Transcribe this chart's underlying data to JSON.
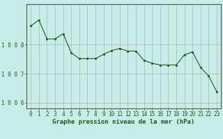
{
  "x": [
    0,
    1,
    2,
    3,
    4,
    5,
    6,
    7,
    8,
    9,
    10,
    11,
    12,
    13,
    14,
    15,
    16,
    17,
    18,
    19,
    20,
    21,
    22,
    23
  ],
  "y": [
    1008.65,
    1008.85,
    1008.2,
    1008.2,
    1008.38,
    1007.72,
    1007.52,
    1007.52,
    1007.52,
    1007.67,
    1007.8,
    1007.87,
    1007.78,
    1007.78,
    1007.46,
    1007.36,
    1007.3,
    1007.3,
    1007.3,
    1007.65,
    1007.75,
    1007.22,
    1006.92,
    1006.38
  ],
  "background_color": "#c8ece8",
  "line_color": "#1a5c1a",
  "marker_color": "#1a5c1a",
  "grid_color": "#b0b0b0",
  "axis_color": "#555555",
  "tick_label_color": "#1a5c1a",
  "xlabel": "Graphe pression niveau de la mer (hPa)",
  "ylim": [
    1005.8,
    1009.4
  ],
  "yticks": [
    1006,
    1007,
    1008
  ],
  "ytick_labels": [
    "1 0 0 6",
    "1 0 0 7",
    "1 0 0 8"
  ],
  "xticks": [
    0,
    1,
    2,
    3,
    4,
    5,
    6,
    7,
    8,
    9,
    10,
    11,
    12,
    13,
    14,
    15,
    16,
    17,
    18,
    19,
    20,
    21,
    22,
    23
  ],
  "tick_fontsize": 5.5,
  "xlabel_fontsize": 6.5,
  "ylabel_fontsize": 5.5
}
